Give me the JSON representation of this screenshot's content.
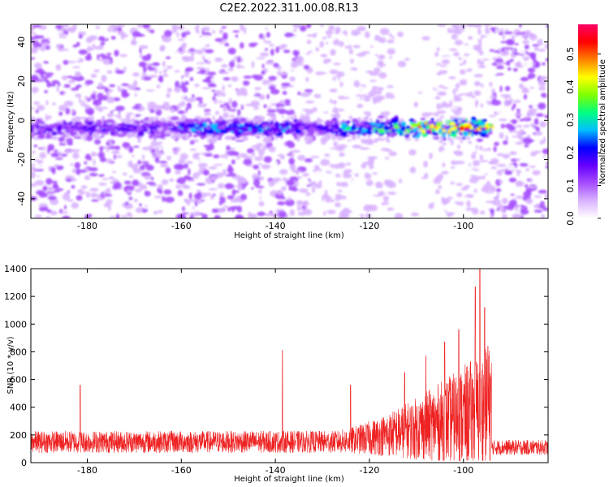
{
  "title": "C2E2.2022.311.00.08.R13",
  "chart_data": [
    {
      "type": "heatmap",
      "xlabel": "Height of straight line (km)",
      "ylabel": "Frequency (Hz)",
      "xlim": [
        -192,
        -82
      ],
      "ylim": [
        -50,
        49
      ],
      "xticks": [
        -180,
        -160,
        -140,
        -120,
        -100
      ],
      "yticks": [
        -40,
        -20,
        0,
        20,
        40
      ],
      "colorbar": {
        "label": "Normalized spectral amplitude",
        "range": [
          0,
          0.59
        ],
        "ticks": [
          0.0,
          0.1,
          0.2,
          0.3,
          0.4,
          0.5
        ],
        "colors": [
          "#ffffff",
          "#d9b3ff",
          "#a64dff",
          "#6600ff",
          "#0000ff",
          "#00bfff",
          "#00ff80",
          "#80ff00",
          "#ffff00",
          "#ff8000",
          "#ff0000",
          "#ff0066"
        ]
      },
      "signal_band": {
        "center_frequency": -4,
        "half_width": 4,
        "start_km": -192,
        "end_km": -94,
        "strong_from_km": -128,
        "peak_km": -100,
        "peak_amplitude": 0.55
      },
      "blank_columns_km": [
        [
          -115,
          -106
        ]
      ],
      "grid": false
    },
    {
      "type": "line",
      "xlabel": "Height of straight line (km)",
      "ylabel": "SNR (10 * v/v)",
      "xlim": [
        -192,
        -82
      ],
      "ylim": [
        0,
        1400
      ],
      "xticks": [
        -180,
        -160,
        -140,
        -120,
        -100
      ],
      "yticks": [
        0,
        200,
        400,
        600,
        800,
        1000,
        1200,
        1400
      ],
      "series": [
        {
          "color": "#ee2222",
          "baseline": 150,
          "noise_amplitude": 80,
          "spikes": [
            {
              "x": -181.5,
              "y": 560
            },
            {
              "x": -138.5,
              "y": 810
            },
            {
              "x": -124,
              "y": 560
            },
            {
              "x": -112.5,
              "y": 650
            },
            {
              "x": -108,
              "y": 770
            },
            {
              "x": -104,
              "y": 870
            },
            {
              "x": -101,
              "y": 960
            },
            {
              "x": -97.5,
              "y": 1270
            },
            {
              "x": -96.5,
              "y": 1400
            },
            {
              "x": -95.5,
              "y": 1120
            },
            {
              "x": -94.8,
              "y": 840
            }
          ],
          "drop_km": -94,
          "after_drop_level": 110
        }
      ],
      "grid": false
    }
  ]
}
